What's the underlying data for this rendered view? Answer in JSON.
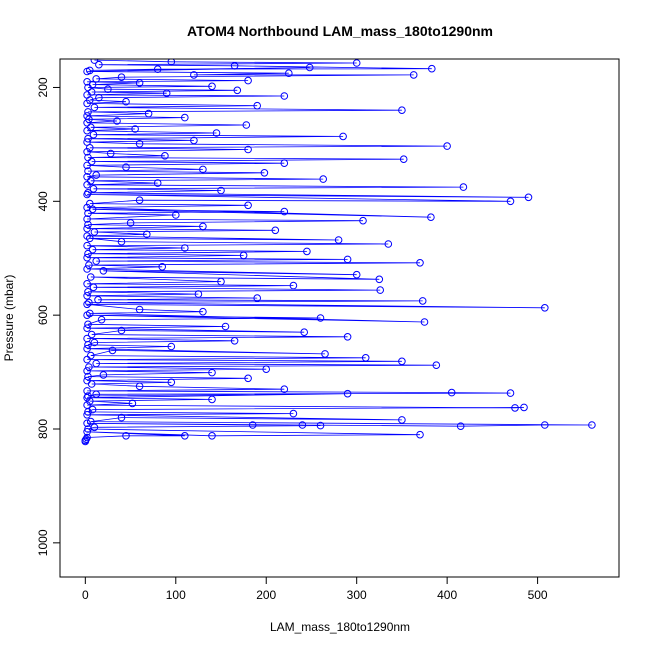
{
  "chart_data": {
    "type": "line",
    "title": "ATOM4 Northbound LAM_mass_180to1290nm",
    "xlabel": "LAM_mass_180to1290nm",
    "ylabel": "Pressure (mbar)",
    "xlim": [
      -28,
      590
    ],
    "ylim": [
      1060,
      150
    ],
    "y_reversed": true,
    "x_ticks": [
      0,
      100,
      200,
      300,
      400,
      500
    ],
    "y_ticks": [
      200,
      400,
      600,
      800,
      1000
    ],
    "grid": false,
    "markers": "open-circle",
    "series": [
      {
        "color": "#0000ff",
        "points": [
          [
            10,
            152
          ],
          [
            95,
            155
          ],
          [
            300,
            157
          ],
          [
            15,
            160
          ],
          [
            165,
            162
          ],
          [
            383,
            167
          ],
          [
            80,
            168
          ],
          [
            5,
            170
          ],
          [
            248,
            165
          ],
          [
            2,
            172
          ],
          [
            225,
            175
          ],
          [
            120,
            178
          ],
          [
            363,
            178
          ],
          [
            40,
            182
          ],
          [
            12,
            185
          ],
          [
            180,
            188
          ],
          [
            2,
            190
          ],
          [
            60,
            192
          ],
          [
            8,
            195
          ],
          [
            140,
            198
          ],
          [
            3,
            200
          ],
          [
            25,
            203
          ],
          [
            168,
            205
          ],
          [
            7,
            208
          ],
          [
            90,
            210
          ],
          [
            2,
            213
          ],
          [
            220,
            215
          ],
          [
            15,
            218
          ],
          [
            5,
            222
          ],
          [
            45,
            225
          ],
          [
            2,
            228
          ],
          [
            190,
            232
          ],
          [
            10,
            235
          ],
          [
            350,
            240
          ],
          [
            3,
            243
          ],
          [
            70,
            246
          ],
          [
            2,
            250
          ],
          [
            110,
            253
          ],
          [
            4,
            256
          ],
          [
            35,
            259
          ],
          [
            2,
            262
          ],
          [
            178,
            266
          ],
          [
            6,
            270
          ],
          [
            55,
            273
          ],
          [
            2,
            276
          ],
          [
            145,
            280
          ],
          [
            9,
            283
          ],
          [
            285,
            286
          ],
          [
            3,
            290
          ],
          [
            120,
            293
          ],
          [
            2,
            296
          ],
          [
            60,
            299
          ],
          [
            400,
            303
          ],
          [
            5,
            306
          ],
          [
            180,
            309
          ],
          [
            2,
            313
          ],
          [
            28,
            316
          ],
          [
            88,
            320
          ],
          [
            3,
            323
          ],
          [
            352,
            326
          ],
          [
            7,
            330
          ],
          [
            220,
            333
          ],
          [
            2,
            337
          ],
          [
            45,
            340
          ],
          [
            130,
            344
          ],
          [
            3,
            347
          ],
          [
            198,
            350
          ],
          [
            12,
            354
          ],
          [
            2,
            357
          ],
          [
            263,
            361
          ],
          [
            6,
            364
          ],
          [
            80,
            368
          ],
          [
            2,
            371
          ],
          [
            418,
            375
          ],
          [
            9,
            378
          ],
          [
            150,
            381
          ],
          [
            3,
            385
          ],
          [
            490,
            393
          ],
          [
            2,
            388
          ],
          [
            470,
            400
          ],
          [
            60,
            398
          ],
          [
            5,
            404
          ],
          [
            180,
            407
          ],
          [
            2,
            411
          ],
          [
            382,
            428
          ],
          [
            8,
            414
          ],
          [
            220,
            418
          ],
          [
            3,
            421
          ],
          [
            100,
            424
          ],
          [
            2,
            431
          ],
          [
            307,
            434
          ],
          [
            50,
            438
          ],
          [
            3,
            441
          ],
          [
            130,
            444
          ],
          [
            2,
            448
          ],
          [
            210,
            451
          ],
          [
            10,
            454
          ],
          [
            68,
            458
          ],
          [
            2,
            461
          ],
          [
            280,
            468
          ],
          [
            5,
            465
          ],
          [
            40,
            471
          ],
          [
            335,
            475
          ],
          [
            2,
            478
          ],
          [
            110,
            482
          ],
          [
            8,
            485
          ],
          [
            245,
            488
          ],
          [
            3,
            492
          ],
          [
            175,
            495
          ],
          [
            2,
            499
          ],
          [
            290,
            502
          ],
          [
            12,
            505
          ],
          [
            370,
            508
          ],
          [
            4,
            512
          ],
          [
            85,
            515
          ],
          [
            2,
            519
          ],
          [
            300,
            529
          ],
          [
            20,
            522
          ],
          [
            325,
            537
          ],
          [
            6,
            533
          ],
          [
            150,
            541
          ],
          [
            2,
            545
          ],
          [
            230,
            548
          ],
          [
            9,
            551
          ],
          [
            326,
            556
          ],
          [
            3,
            559
          ],
          [
            125,
            563
          ],
          [
            2,
            566
          ],
          [
            190,
            570
          ],
          [
            14,
            573
          ],
          [
            373,
            575
          ],
          [
            4,
            578
          ],
          [
            508,
            587
          ],
          [
            2,
            581
          ],
          [
            60,
            590
          ],
          [
            130,
            594
          ],
          [
            5,
            597
          ],
          [
            375,
            612
          ],
          [
            2,
            600
          ],
          [
            260,
            605
          ],
          [
            18,
            608
          ],
          [
            3,
            616
          ],
          [
            155,
            620
          ],
          [
            2,
            623
          ],
          [
            242,
            630
          ],
          [
            40,
            627
          ],
          [
            7,
            634
          ],
          [
            290,
            638
          ],
          [
            2,
            641
          ],
          [
            165,
            645
          ],
          [
            10,
            648
          ],
          [
            3,
            652
          ],
          [
            95,
            655
          ],
          [
            2,
            659
          ],
          [
            265,
            668
          ],
          [
            30,
            662
          ],
          [
            6,
            671
          ],
          [
            310,
            675
          ],
          [
            2,
            678
          ],
          [
            350,
            681
          ],
          [
            12,
            685
          ],
          [
            388,
            688
          ],
          [
            4,
            691
          ],
          [
            200,
            695
          ],
          [
            2,
            698
          ],
          [
            140,
            701
          ],
          [
            20,
            705
          ],
          [
            3,
            708
          ],
          [
            180,
            711
          ],
          [
            2,
            715
          ],
          [
            95,
            718
          ],
          [
            7,
            721
          ],
          [
            60,
            725
          ],
          [
            220,
            730
          ],
          [
            2,
            733
          ],
          [
            405,
            736
          ],
          [
            470,
            737
          ],
          [
            12,
            739
          ],
          [
            3,
            742
          ],
          [
            290,
            738
          ],
          [
            2,
            745
          ],
          [
            140,
            748
          ],
          [
            5,
            751
          ],
          [
            52,
            755
          ],
          [
            2,
            758
          ],
          [
            475,
            763
          ],
          [
            485,
            762
          ],
          [
            8,
            766
          ],
          [
            3,
            770
          ],
          [
            230,
            773
          ],
          [
            2,
            775
          ],
          [
            350,
            784
          ],
          [
            40,
            780
          ],
          [
            6,
            787
          ],
          [
            560,
            793
          ],
          [
            508,
            793
          ],
          [
            415,
            795
          ],
          [
            2,
            790
          ],
          [
            185,
            793
          ],
          [
            240,
            793
          ],
          [
            260,
            794
          ],
          [
            10,
            797
          ],
          [
            3,
            800
          ],
          [
            370,
            810
          ],
          [
            140,
            812
          ],
          [
            2,
            805
          ],
          [
            110,
            812
          ],
          [
            45,
            812
          ],
          [
            2,
            815
          ],
          [
            1,
            818
          ],
          [
            0,
            820
          ],
          [
            0,
            822
          ]
        ]
      }
    ]
  }
}
